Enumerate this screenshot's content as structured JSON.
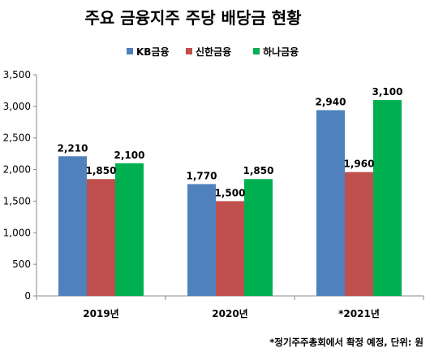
{
  "chart_data": {
    "type": "bar",
    "title": "주요 금융지주 주당 배당금 현황",
    "categories": [
      "2019년",
      "2020년",
      "*2021년"
    ],
    "series": [
      {
        "name": "KB금융",
        "values": [
          2210,
          1770,
          2940
        ],
        "color": "#4f81bd"
      },
      {
        "name": "신한금융",
        "values": [
          1850,
          1500,
          1960
        ],
        "color": "#c0504d"
      },
      {
        "name": "하나금융",
        "values": [
          2100,
          1850,
          3100
        ],
        "color": "#00b050"
      }
    ],
    "ylim": [
      0,
      3500
    ],
    "yticks": [
      0,
      500,
      1000,
      1500,
      2000,
      2500,
      3000,
      3500
    ],
    "ytick_labels": [
      "0",
      "500",
      "1,000",
      "1,500",
      "2,000",
      "2,500",
      "3,000",
      "3,500"
    ],
    "xlabel": "",
    "ylabel": "",
    "legend_position": "top-right",
    "grid": false,
    "footnote": "*정기주주총회에서 확정 예정, 단위: 원"
  }
}
